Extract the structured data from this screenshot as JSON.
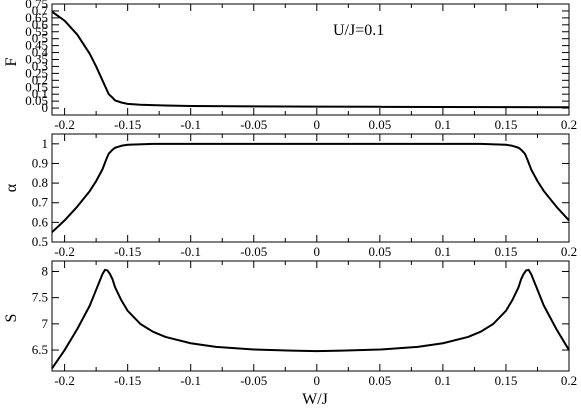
{
  "figure": {
    "xlabel": "W/J"
  },
  "chart_data": [
    {
      "type": "line",
      "panel": "top",
      "ylabel": "F",
      "annotation": "U/J=0.1",
      "xlim": [
        -0.21,
        0.2
      ],
      "ylim": [
        -0.05,
        0.75
      ],
      "xticks": [
        -0.2,
        -0.15,
        -0.1,
        -0.05,
        0,
        0.05,
        0.1,
        0.15,
        0.2
      ],
      "xtick_labels": [
        "-0.2",
        "-0.15",
        "-0.1",
        "-0.05",
        "0",
        "0.05",
        "0.1",
        "0.15",
        "0.2"
      ],
      "yticks": [
        0,
        0.05,
        0.1,
        0.15,
        0.2,
        0.25,
        0.3,
        0.35,
        0.4,
        0.45,
        0.5,
        0.55,
        0.6,
        0.65,
        0.7,
        0.75
      ],
      "ytick_labels": [
        "0",
        "",
        "0.1",
        "",
        "0.2",
        "",
        "0.3",
        "",
        "0.4",
        "",
        "0.5",
        "",
        "0.6",
        "",
        "0.7",
        ""
      ],
      "ytick_labels_shown": [
        "0",
        "0.05",
        "0.1",
        "0.15",
        "0.2",
        "0.25",
        "0.3",
        "0.35",
        "0.4",
        "0.45",
        "0.5",
        "0.55",
        "0.6",
        "0.65",
        "0.7",
        "0.75"
      ],
      "grid": false,
      "series": [
        {
          "x": [
            -0.21,
            -0.2,
            -0.19,
            -0.18,
            -0.175,
            -0.17,
            -0.167,
            -0.165,
            -0.162,
            -0.16,
            -0.155,
            -0.15,
            -0.14,
            -0.12,
            -0.1,
            -0.05,
            0,
            0.05,
            0.1,
            0.15,
            0.2
          ],
          "y": [
            0.695,
            0.63,
            0.53,
            0.39,
            0.3,
            0.2,
            0.14,
            0.1,
            0.075,
            0.055,
            0.04,
            0.03,
            0.024,
            0.018,
            0.015,
            0.012,
            0.01,
            0.009,
            0.008,
            0.007,
            0.006
          ]
        }
      ]
    },
    {
      "type": "line",
      "panel": "middle",
      "ylabel": "α",
      "xlim": [
        -0.21,
        0.2
      ],
      "ylim": [
        0.5,
        1.05
      ],
      "xticks": [
        -0.2,
        -0.15,
        -0.1,
        -0.05,
        0,
        0.05,
        0.1,
        0.15,
        0.2
      ],
      "xtick_labels": [
        "-0.2",
        "-0.15",
        "-0.1",
        "-0.05",
        "0",
        "0.05",
        "0.1",
        "0.15",
        "0.2"
      ],
      "yticks": [
        0.5,
        0.6,
        0.7,
        0.8,
        0.9,
        1.0
      ],
      "ytick_labels": [
        "0.5",
        "0.6",
        "0.7",
        "0.8",
        "0.9",
        "1"
      ],
      "grid": false,
      "series": [
        {
          "x": [
            -0.21,
            -0.2,
            -0.19,
            -0.18,
            -0.175,
            -0.17,
            -0.167,
            -0.165,
            -0.162,
            -0.16,
            -0.155,
            -0.15,
            -0.13,
            -0.1,
            0,
            0.1,
            0.13,
            0.15,
            0.155,
            0.16,
            0.162,
            0.165,
            0.167,
            0.17,
            0.175,
            0.18,
            0.19,
            0.2
          ],
          "y": [
            0.55,
            0.61,
            0.68,
            0.76,
            0.81,
            0.87,
            0.92,
            0.95,
            0.97,
            0.98,
            0.99,
            0.995,
            1.0,
            1.0,
            1.0,
            1.0,
            1.0,
            0.995,
            0.99,
            0.98,
            0.97,
            0.95,
            0.92,
            0.87,
            0.81,
            0.76,
            0.68,
            0.61
          ]
        }
      ]
    },
    {
      "type": "line",
      "panel": "bottom",
      "ylabel": "S",
      "xlim": [
        -0.21,
        0.2
      ],
      "ylim": [
        6.1,
        8.2
      ],
      "xticks": [
        -0.2,
        -0.15,
        -0.1,
        -0.05,
        0,
        0.05,
        0.1,
        0.15,
        0.2
      ],
      "xtick_labels": [
        "-0.2",
        "-0.15",
        "-0.1",
        "-0.05",
        "0",
        "0.05",
        "0.1",
        "0.15",
        "0.2"
      ],
      "yticks": [
        6.5,
        7,
        7.5,
        8
      ],
      "ytick_labels": [
        "6.5",
        "7",
        "7.5",
        "8"
      ],
      "grid": false,
      "series": [
        {
          "x": [
            -0.21,
            -0.2,
            -0.19,
            -0.18,
            -0.175,
            -0.17,
            -0.168,
            -0.166,
            -0.164,
            -0.162,
            -0.16,
            -0.155,
            -0.15,
            -0.14,
            -0.13,
            -0.12,
            -0.1,
            -0.08,
            -0.05,
            -0.02,
            0,
            0.02,
            0.05,
            0.08,
            0.1,
            0.12,
            0.13,
            0.14,
            0.15,
            0.155,
            0.16,
            0.162,
            0.164,
            0.166,
            0.168,
            0.17,
            0.175,
            0.18,
            0.19,
            0.2
          ],
          "y": [
            6.15,
            6.5,
            6.9,
            7.35,
            7.65,
            7.95,
            8.03,
            8.02,
            7.95,
            7.85,
            7.7,
            7.45,
            7.25,
            7.0,
            6.85,
            6.75,
            6.63,
            6.56,
            6.51,
            6.49,
            6.48,
            6.49,
            6.51,
            6.56,
            6.63,
            6.75,
            6.85,
            7.0,
            7.25,
            7.45,
            7.7,
            7.85,
            7.95,
            8.02,
            8.03,
            7.95,
            7.65,
            7.35,
            6.9,
            6.5
          ]
        }
      ]
    }
  ]
}
